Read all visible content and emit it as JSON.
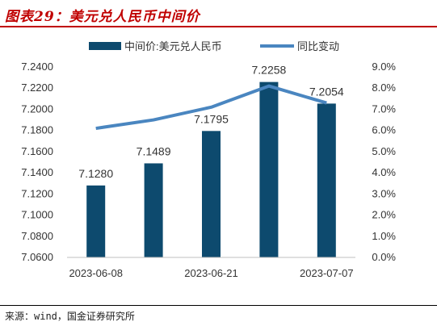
{
  "figure_title": "图表29：美元兑人民币中间价",
  "source_note": "来源：wind，国金证券研究所",
  "colors": {
    "bar": "#0d4a6e",
    "line": "#4a86c0",
    "title": "#c00000"
  },
  "chart_data": {
    "type": "bar",
    "categories": [
      "2023-06-08",
      "",
      "2023-06-21",
      "",
      "2023-07-07"
    ],
    "x_tick_labels": [
      "2023-06-08",
      "2023-06-21",
      "2023-07-07"
    ],
    "series": [
      {
        "name": "中间价:美元兑人民币",
        "type": "bar",
        "axis": "left",
        "values": [
          7.128,
          7.1489,
          7.1795,
          7.2258,
          7.2054
        ],
        "data_labels": [
          "7.1280",
          "7.1489",
          "7.1795",
          "7.2258",
          "7.2054"
        ]
      },
      {
        "name": "同比变动",
        "type": "line",
        "axis": "right",
        "values": [
          6.1,
          6.5,
          7.1,
          8.1,
          7.3
        ]
      }
    ],
    "y_left": {
      "lim": [
        7.06,
        7.24
      ],
      "ticks": [
        "7.2400",
        "7.2200",
        "7.2000",
        "7.1800",
        "7.1600",
        "7.1400",
        "7.1200",
        "7.1000",
        "7.0800",
        "7.0600"
      ]
    },
    "y_right": {
      "lim": [
        0,
        9
      ],
      "ticks": [
        "9.0%",
        "8.0%",
        "7.0%",
        "6.0%",
        "5.0%",
        "4.0%",
        "3.0%",
        "2.0%",
        "1.0%",
        "0.0%"
      ]
    },
    "legend_position": "top",
    "grid": false
  }
}
